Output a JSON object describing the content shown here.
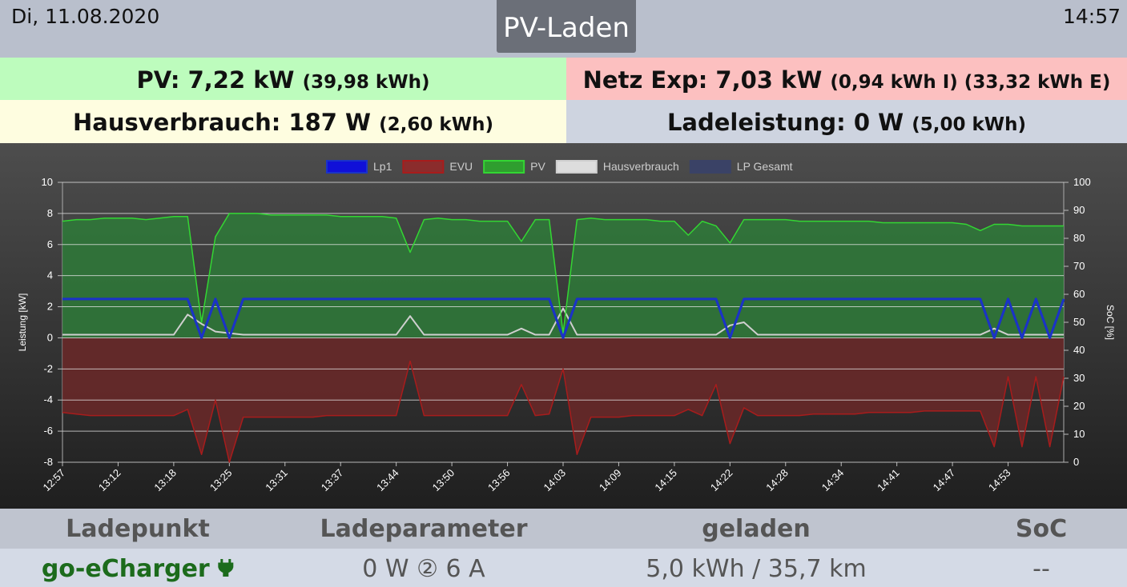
{
  "header": {
    "date": "Di, 11.08.2020",
    "title": "PV-Laden",
    "time": "14:57"
  },
  "status": {
    "pv": {
      "main": "PV: 7,22 kW",
      "detail": "(39,98 kWh)"
    },
    "grid": {
      "main": "Netz Exp: 7,03 kW",
      "detail": "(0,94 kWh I) (33,32 kWh E)"
    },
    "house": {
      "main": "Hausverbrauch: 187 W",
      "detail": "(2,60 kWh)"
    },
    "charge": {
      "main": "Ladeleistung: 0 W",
      "detail": "(5,00 kWh)"
    }
  },
  "chart_data": {
    "type": "line",
    "ylabel": "Leistung [kW]",
    "y2label": "SoC [%]",
    "ylim": [
      -8,
      10
    ],
    "yticks": [
      -8,
      -6,
      -4,
      -2,
      0,
      2,
      4,
      6,
      8,
      10
    ],
    "y2lim": [
      0,
      100
    ],
    "y2ticks": [
      0,
      10,
      20,
      30,
      40,
      50,
      60,
      70,
      80,
      90,
      100
    ],
    "grid": true,
    "legend": "top",
    "categories": [
      "12:57",
      null,
      null,
      null,
      "13:12",
      null,
      null,
      null,
      "13:18",
      null,
      null,
      null,
      "13:25",
      null,
      null,
      null,
      "13:31",
      null,
      null,
      null,
      "13:37",
      null,
      null,
      null,
      "13:44",
      null,
      null,
      null,
      "13:50",
      null,
      null,
      null,
      "13:56",
      null,
      null,
      null,
      "14:03",
      null,
      null,
      null,
      "14:09",
      null,
      null,
      null,
      "14:15",
      null,
      null,
      null,
      "14:22",
      null,
      null,
      null,
      "14:28",
      null,
      null,
      null,
      "14:34",
      null,
      null,
      null,
      "14:41",
      null,
      null,
      null,
      "14:47",
      null,
      null,
      null,
      "14:53",
      null,
      null,
      null,
      null
    ],
    "series": [
      {
        "name": "Lp1",
        "color": "#1a33c8",
        "legend_color": "#1010d8",
        "values": [
          2.5,
          2.5,
          2.5,
          2.5,
          2.5,
          2.5,
          2.5,
          2.5,
          2.5,
          2.5,
          0,
          2.5,
          0,
          2.5,
          2.5,
          2.5,
          2.5,
          2.5,
          2.5,
          2.5,
          2.5,
          2.5,
          2.5,
          2.5,
          2.5,
          2.5,
          2.5,
          2.5,
          2.5,
          2.5,
          2.5,
          2.5,
          2.5,
          2.5,
          2.5,
          2.5,
          0,
          2.5,
          2.5,
          2.5,
          2.5,
          2.5,
          2.5,
          2.5,
          2.5,
          2.5,
          2.5,
          2.5,
          0,
          2.5,
          2.5,
          2.5,
          2.5,
          2.5,
          2.5,
          2.5,
          2.5,
          2.5,
          2.5,
          2.5,
          2.5,
          2.5,
          2.5,
          2.5,
          2.5,
          2.5,
          2.5,
          0,
          2.5,
          0,
          2.5,
          0,
          2.5
        ]
      },
      {
        "name": "EVU",
        "color": "#a81c1c",
        "legend_color": "#8b2c2c",
        "fill_color": "#6b2828",
        "values": [
          -4.8,
          -4.9,
          -5.0,
          -5.0,
          -5.0,
          -5.0,
          -5.0,
          -5.0,
          -5.0,
          -4.6,
          -7.5,
          -4.0,
          -8.0,
          -5.1,
          -5.1,
          -5.1,
          -5.1,
          -5.1,
          -5.1,
          -5.0,
          -5.0,
          -5.0,
          -5.0,
          -5.0,
          -5.0,
          -1.5,
          -5.0,
          -5.0,
          -5.0,
          -5.0,
          -5.0,
          -5.0,
          -5.0,
          -3.0,
          -5.0,
          -4.9,
          -2.0,
          -7.5,
          -5.1,
          -5.1,
          -5.1,
          -5.0,
          -5.0,
          -5.0,
          -5.0,
          -4.6,
          -5.0,
          -3.0,
          -6.8,
          -4.5,
          -5.0,
          -5.0,
          -5.0,
          -5.0,
          -4.9,
          -4.9,
          -4.9,
          -4.9,
          -4.8,
          -4.8,
          -4.8,
          -4.8,
          -4.7,
          -4.7,
          -4.7,
          -4.7,
          -4.7,
          -7.0,
          -2.5,
          -7.0,
          -2.5,
          -7.0,
          -2.5
        ]
      },
      {
        "name": "PV",
        "color": "#33d633",
        "legend_color": "#2f9e2f",
        "fill_color": "#2e7a38",
        "values": [
          7.5,
          7.6,
          7.6,
          7.7,
          7.7,
          7.7,
          7.6,
          7.7,
          7.8,
          7.8,
          1.0,
          6.5,
          8.0,
          8.0,
          8.0,
          7.9,
          7.9,
          7.9,
          7.9,
          7.9,
          7.8,
          7.8,
          7.8,
          7.8,
          7.7,
          5.5,
          7.6,
          7.7,
          7.6,
          7.6,
          7.5,
          7.5,
          7.5,
          6.2,
          7.6,
          7.6,
          0.3,
          7.6,
          7.7,
          7.6,
          7.6,
          7.6,
          7.6,
          7.5,
          7.5,
          6.6,
          7.5,
          7.2,
          6.1,
          7.6,
          7.6,
          7.6,
          7.6,
          7.5,
          7.5,
          7.5,
          7.5,
          7.5,
          7.5,
          7.4,
          7.4,
          7.4,
          7.4,
          7.4,
          7.4,
          7.3,
          6.9,
          7.3,
          7.3,
          7.2,
          7.2,
          7.2,
          7.2
        ]
      },
      {
        "name": "Hausverbrauch",
        "color": "#cfcfcf",
        "legend_color": "#dddddd",
        "values": [
          0.2,
          0.2,
          0.2,
          0.2,
          0.2,
          0.2,
          0.2,
          0.2,
          0.2,
          1.5,
          0.9,
          0.4,
          0.3,
          0.2,
          0.2,
          0.2,
          0.2,
          0.2,
          0.2,
          0.2,
          0.2,
          0.2,
          0.2,
          0.2,
          0.2,
          1.4,
          0.2,
          0.2,
          0.2,
          0.2,
          0.2,
          0.2,
          0.2,
          0.6,
          0.2,
          0.2,
          1.9,
          0.2,
          0.2,
          0.2,
          0.2,
          0.2,
          0.2,
          0.2,
          0.2,
          0.2,
          0.2,
          0.2,
          0.8,
          1.0,
          0.2,
          0.2,
          0.2,
          0.2,
          0.2,
          0.2,
          0.2,
          0.2,
          0.2,
          0.2,
          0.2,
          0.2,
          0.2,
          0.2,
          0.2,
          0.2,
          0.2,
          0.6,
          0.2,
          0.2,
          0.2,
          0.2,
          0.2
        ]
      },
      {
        "name": "LP Gesamt",
        "color": "#3a4266",
        "legend_color": "#3a4266",
        "values": [
          2.5,
          2.5,
          2.5,
          2.5,
          2.5,
          2.5,
          2.5,
          2.5,
          2.5,
          2.5,
          0,
          2.5,
          0,
          2.5,
          2.5,
          2.5,
          2.5,
          2.5,
          2.5,
          2.5,
          2.5,
          2.5,
          2.5,
          2.5,
          2.5,
          2.5,
          2.5,
          2.5,
          2.5,
          2.5,
          2.5,
          2.5,
          2.5,
          2.5,
          2.5,
          2.5,
          0,
          2.5,
          2.5,
          2.5,
          2.5,
          2.5,
          2.5,
          2.5,
          2.5,
          2.5,
          2.5,
          2.5,
          0,
          2.5,
          2.5,
          2.5,
          2.5,
          2.5,
          2.5,
          2.5,
          2.5,
          2.5,
          2.5,
          2.5,
          2.5,
          2.5,
          2.5,
          2.5,
          2.5,
          2.5,
          2.5,
          0,
          2.5,
          0,
          2.5,
          0,
          2.5
        ]
      }
    ]
  },
  "table": {
    "headers": [
      "Ladepunkt",
      "Ladeparameter",
      "geladen",
      "SoC"
    ],
    "rows": [
      [
        "go-eCharger",
        "0 W ② 6 A",
        "5,0 kWh / 35,7 km",
        "--"
      ]
    ]
  }
}
